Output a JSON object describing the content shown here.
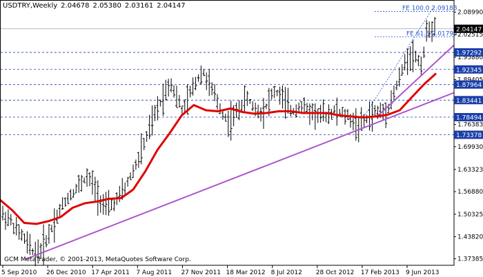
{
  "header": {
    "symbol": "USDTRY,Weekly",
    "open": "2.04678",
    "high": "2.05380",
    "low": "2.03161",
    "close": "2.04147"
  },
  "copyright": "GCM MetaTrader, © 2001-2013, MetaQuotes Software Corp.",
  "current_price": "2.04147",
  "fibo_labels": [
    {
      "text": "FE 100.0 2.09183",
      "value": 2.09183
    },
    {
      "text": "FE 61.8 2.01793",
      "value": 2.01793
    }
  ],
  "colors": {
    "ma": "#e00000",
    "trendline": "#aa55cc",
    "level_line": "#1a3ea8",
    "label_fill": "#1a3ea8",
    "bars": "#000000",
    "fibo": "#2255cc"
  },
  "chart_data": {
    "type": "ohlc",
    "ylim": [
      1.355,
      2.125
    ],
    "y_ticks": [
      "2.08990",
      "2.02515",
      "1.95880",
      "1.89405",
      "1.82930",
      "1.76383",
      "1.69930",
      "1.63323",
      "1.56880",
      "1.50325",
      "1.43820",
      "1.37385"
    ],
    "x_labels": [
      "5 Sep 2010",
      "26 Dec 2010",
      "17 Apr 2011",
      "7 Aug 2011",
      "27 Nov 2011",
      "18 Mar 2012",
      "8 Jul 2012",
      "28 Oct 2012",
      "17 Feb 2013",
      "9 Jun 2013"
    ],
    "levels": [
      "1.97292",
      "1.92345",
      "1.87964",
      "1.83441",
      "1.78494",
      "1.73378"
    ],
    "close_series": [
      1.5,
      1.49,
      1.46,
      1.44,
      1.41,
      1.39,
      1.4,
      1.44,
      1.48,
      1.52,
      1.55,
      1.57,
      1.59,
      1.61,
      1.59,
      1.55,
      1.52,
      1.53,
      1.55,
      1.58,
      1.62,
      1.66,
      1.71,
      1.76,
      1.81,
      1.85,
      1.89,
      1.84,
      1.8,
      1.85,
      1.89,
      1.92,
      1.88,
      1.84,
      1.8,
      1.77,
      1.79,
      1.82,
      1.84,
      1.81,
      1.8,
      1.82,
      1.86,
      1.85,
      1.82,
      1.8,
      1.82,
      1.81,
      1.8,
      1.79,
      1.79,
      1.8,
      1.8,
      1.79,
      1.78,
      1.76,
      1.77,
      1.79,
      1.8,
      1.8,
      1.82,
      1.87,
      1.92,
      1.97,
      1.96,
      1.94,
      2.05,
      2.04
    ],
    "ma_values": [
      1.545,
      1.515,
      1.478,
      1.475,
      1.483,
      1.495,
      1.522,
      1.535,
      1.54,
      1.548,
      1.55,
      1.575,
      1.628,
      1.69,
      1.738,
      1.79,
      1.82,
      1.805,
      1.802,
      1.81,
      1.8,
      1.795,
      1.797,
      1.802,
      1.802,
      1.797,
      1.797,
      1.797,
      1.79,
      1.787,
      1.784,
      1.787,
      1.792,
      1.805,
      1.843,
      1.88,
      1.912
    ],
    "trendlines": [
      {
        "from": [
          1.372
        ],
        "to": [
          1.856
        ]
      },
      {
        "from": [
          1.784
        ],
        "to": [
          1.994
        ]
      }
    ]
  }
}
